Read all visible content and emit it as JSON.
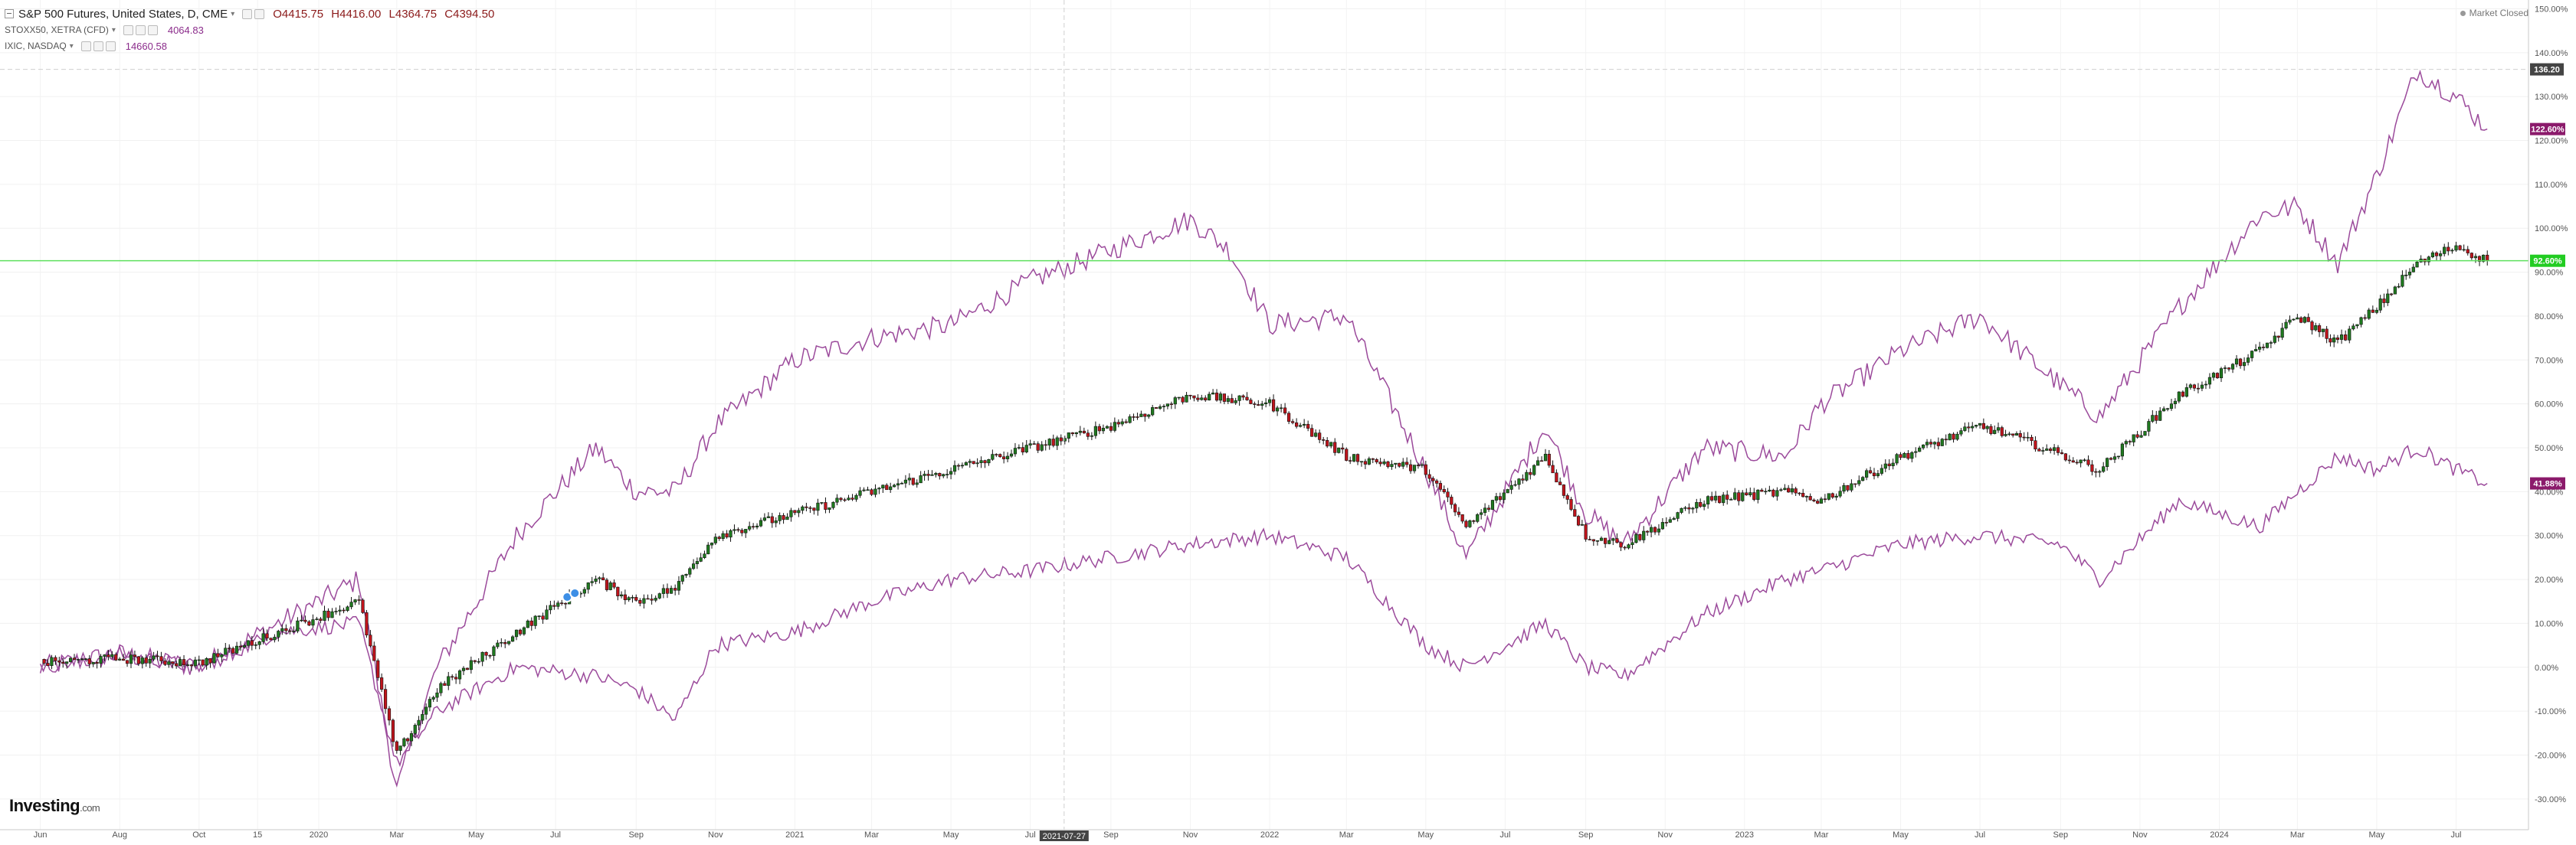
{
  "header": {
    "main_symbol": "S&P 500 Futures, United States, D, CME",
    "ohlc": {
      "open": "O4415.75",
      "high": "H4416.00",
      "low": "L4364.75",
      "close": "C4394.50"
    },
    "overlays": [
      {
        "symbol": "STOXX50, XETRA (CFD)",
        "value": "4064.83"
      },
      {
        "symbol": "IXIC, NASDAQ",
        "value": "14660.58"
      }
    ],
    "market_status": "Market Closed"
  },
  "brand": {
    "name": "Investing",
    "suffix": ".com"
  },
  "crosshair": {
    "date_label": "2021-07-27",
    "price_label": "136.20"
  },
  "colors": {
    "up_candle": "#1f7a1f",
    "down_candle": "#c0141c",
    "overlay_line": "#9b4a9b",
    "green_line": "#5de05d",
    "badge_purple": "#8b1a6b",
    "badge_green": "#22cc22",
    "badge_dark": "#444444"
  },
  "chart_data": {
    "type": "line",
    "x_tick_labels": [
      "Jun",
      "Aug",
      "Oct",
      "15",
      "2020",
      "Mar",
      "May",
      "Jul",
      "Sep",
      "Nov",
      "2021",
      "Mar",
      "May",
      "Jul",
      "Sep",
      "Nov",
      "2022",
      "Mar",
      "May",
      "Jul",
      "Sep",
      "Nov",
      "2023",
      "Mar",
      "May",
      "Jul",
      "Sep",
      "Nov",
      "2024",
      "Mar",
      "May",
      "Jul"
    ],
    "y_axis": {
      "unit": "%",
      "ylim": [
        -37,
        152
      ],
      "ticks": [
        150,
        140,
        130,
        120,
        110,
        100,
        90,
        80,
        70,
        60,
        50,
        40,
        30,
        20,
        10,
        0,
        -10,
        -20,
        -30
      ]
    },
    "y_tick_labels": [
      "150.00%",
      "140.00%",
      "130.00%",
      "120.00%",
      "110.00%",
      "100.00%",
      "90.00%",
      "80.00%",
      "70.00%",
      "60.00%",
      "50.00%",
      "40.00%",
      "30.00%",
      "20.00%",
      "10.00%",
      "0.00%",
      "-10.00%",
      "-20.00%",
      "-30.00%"
    ],
    "end_labels": [
      {
        "text": "122.60%",
        "value": 122.6
      },
      {
        "text": "92.60%",
        "value": 92.6
      },
      {
        "text": "41.88%",
        "value": 41.88
      }
    ],
    "horizontal_line_value": 92.6,
    "dashed_line_value": 136.2,
    "grid": true,
    "series": [
      {
        "style": "candlestick",
        "x": [
          "2019-06",
          "2019-08",
          "2019-10",
          "2019-12",
          "2020-02",
          "2020-03",
          "2020-04",
          "2020-06",
          "2020-08",
          "2020-09",
          "2020-10",
          "2020-11",
          "2021-01",
          "2021-03",
          "2021-05",
          "2021-07",
          "2021-09",
          "2021-11",
          "2022-01",
          "2022-03",
          "2022-05",
          "2022-06",
          "2022-08",
          "2022-09",
          "2022-10",
          "2022-12",
          "2023-02",
          "2023-03",
          "2023-05",
          "2023-07",
          "2023-08",
          "2023-10",
          "2023-12",
          "2024-02",
          "2024-03",
          "2024-04",
          "2024-05",
          "2024-06",
          "2024-07",
          "2024-07-25"
        ],
        "values": [
          1,
          2,
          1,
          8,
          15,
          -20,
          -5,
          8,
          20,
          15,
          18,
          30,
          35,
          40,
          45,
          50,
          55,
          62,
          60,
          48,
          45,
          32,
          48,
          30,
          28,
          38,
          40,
          38,
          48,
          55,
          52,
          45,
          62,
          72,
          80,
          74,
          82,
          92,
          96,
          92.6
        ]
      },
      {
        "style": "line",
        "x": [
          "2019-06",
          "2019-08",
          "2019-10",
          "2019-12",
          "2020-02",
          "2020-03",
          "2020-04",
          "2020-06",
          "2020-08",
          "2020-09",
          "2020-10",
          "2020-11",
          "2021-01",
          "2021-03",
          "2021-05",
          "2021-07",
          "2021-09",
          "2021-11",
          "2021-12",
          "2022-01",
          "2022-03",
          "2022-05",
          "2022-06",
          "2022-08",
          "2022-09",
          "2022-10",
          "2022-12",
          "2023-02",
          "2023-03",
          "2023-05",
          "2023-07",
          "2023-08",
          "2023-10",
          "2023-12",
          "2024-02",
          "2024-03",
          "2024-04",
          "2024-05",
          "2024-06",
          "2024-07",
          "2024-07-25"
        ],
        "values": [
          0,
          3,
          0,
          10,
          20,
          -28,
          0,
          30,
          50,
          40,
          40,
          55,
          70,
          75,
          78,
          88,
          95,
          102,
          95,
          78,
          80,
          45,
          25,
          55,
          35,
          28,
          50,
          48,
          60,
          72,
          80,
          72,
          57,
          82,
          103,
          105,
          92,
          112,
          136,
          130,
          122.6
        ]
      },
      {
        "style": "line",
        "x": [
          "2019-06",
          "2019-08",
          "2019-10",
          "2019-12",
          "2020-02",
          "2020-03",
          "2020-04",
          "2020-06",
          "2020-08",
          "2020-09",
          "2020-10",
          "2020-11",
          "2021-01",
          "2021-03",
          "2021-05",
          "2021-07",
          "2021-09",
          "2021-11",
          "2022-01",
          "2022-03",
          "2022-05",
          "2022-06",
          "2022-08",
          "2022-09",
          "2022-10",
          "2022-12",
          "2023-02",
          "2023-03",
          "2023-05",
          "2023-07",
          "2023-09",
          "2023-10",
          "2023-12",
          "2024-02",
          "2024-03",
          "2024-04",
          "2024-05",
          "2024-06",
          "2024-07",
          "2024-07-25"
        ],
        "values": [
          0,
          3,
          0,
          8,
          10,
          -22,
          -10,
          0,
          -2,
          -5,
          -12,
          5,
          8,
          15,
          20,
          22,
          25,
          28,
          30,
          25,
          5,
          0,
          10,
          0,
          -2,
          12,
          20,
          22,
          28,
          30,
          28,
          20,
          38,
          32,
          40,
          48,
          45,
          50,
          45,
          41.88
        ]
      }
    ]
  }
}
